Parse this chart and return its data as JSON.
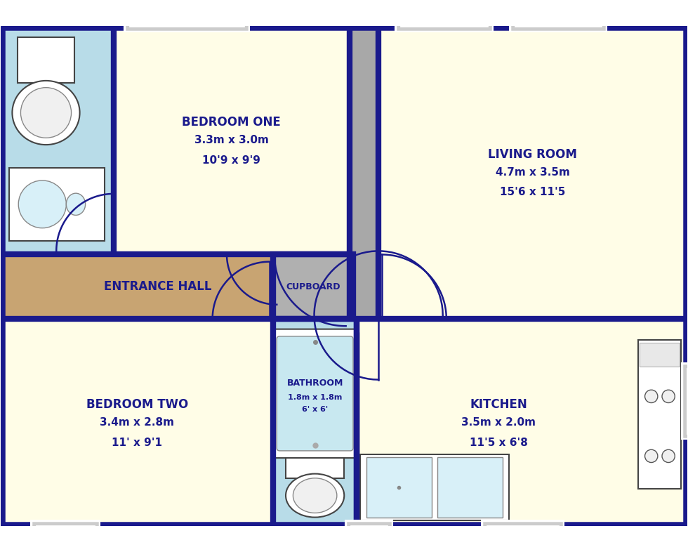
{
  "bg_color": "#ffffff",
  "wall_color": "#1a1a8c",
  "room_colors": {
    "bedroom1": "#fffde7",
    "bedroom2": "#fffde7",
    "living": "#fffde7",
    "kitchen": "#fffde7",
    "hall": "#c8a472",
    "ensuite": "#b8dce8",
    "bathroom": "#b8dce8",
    "cupboard": "#b0b0b0"
  },
  "text_color": "#1a1a8c",
  "rooms": {
    "bedroom1": {
      "label": "BEDROOM ONE",
      "dim1": "3.3m x 3.0m",
      "dim2": "10'9 x 9'9"
    },
    "bedroom2": {
      "label": "BEDROOM TWO",
      "dim1": "3.4m x 2.8m",
      "dim2": "11' x 9'1"
    },
    "living": {
      "label": "LIVING ROOM",
      "dim1": "4.7m x 3.5m",
      "dim2": "15'6 x 11'5"
    },
    "kitchen": {
      "label": "KITCHEN",
      "dim1": "3.5m x 2.0m",
      "dim2": "11'5 x 6'8"
    },
    "hall": {
      "label": "ENTRANCE HALL"
    },
    "bathroom": {
      "label": "BATHROOM",
      "dim1": "1.8m x 1.8m",
      "dim2": "6' x 6'"
    },
    "cupboard": {
      "label": "CUPBOARD"
    }
  },
  "label_fontsize": 12,
  "dim_fontsize": 11,
  "small_fontsize": 9
}
